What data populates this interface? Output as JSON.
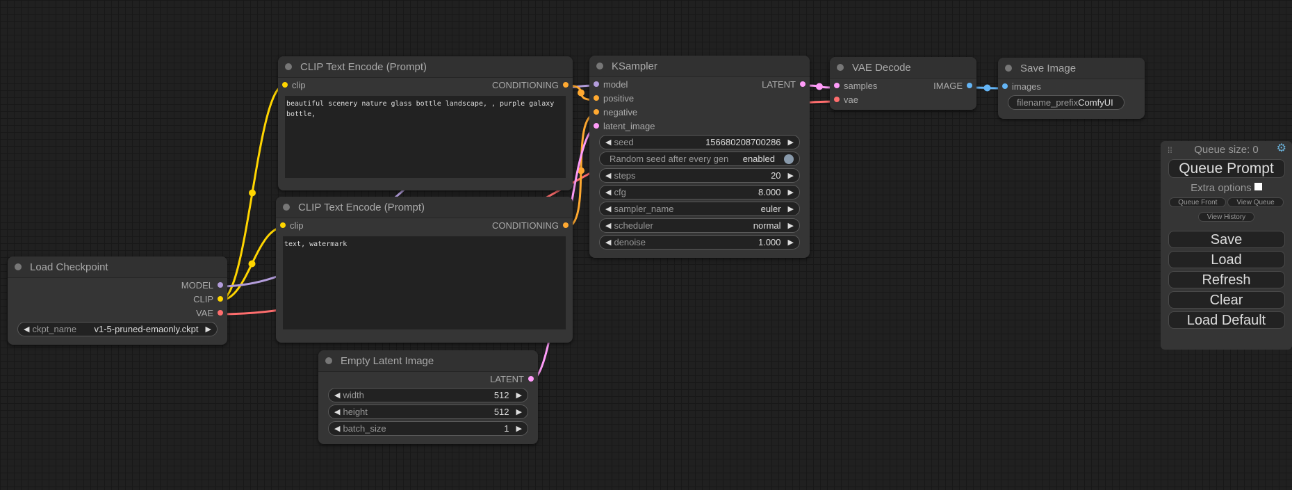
{
  "colors": {
    "model": "#b39ddb",
    "clip": "#ffd500",
    "vae": "#ff6e6e",
    "conditioning": "#ffa931",
    "latent": "#ff9cf9",
    "image": "#64b5f6"
  },
  "nodes": [
    {
      "id": "clip-text-encode-positive",
      "title": "CLIP Text Encode (Prompt)",
      "inputs": [
        {
          "label": "clip",
          "type": "clip"
        }
      ],
      "outputs": [
        {
          "label": "CONDITIONING",
          "type": "conditioning"
        }
      ],
      "text": "beautiful scenery nature glass bottle landscape, , purple galaxy\nbottle,",
      "widgets": []
    },
    {
      "id": "clip-text-encode-negative",
      "title": "CLIP Text Encode (Prompt)",
      "inputs": [
        {
          "label": "clip",
          "type": "clip"
        }
      ],
      "outputs": [
        {
          "label": "CONDITIONING",
          "type": "conditioning"
        }
      ],
      "text": "text, watermark",
      "widgets": []
    },
    {
      "id": "load-checkpoint",
      "title": "Load Checkpoint",
      "inputs": [],
      "outputs": [
        {
          "label": "MODEL",
          "type": "model"
        },
        {
          "label": "CLIP",
          "type": "clip"
        },
        {
          "label": "VAE",
          "type": "vae"
        }
      ],
      "widgets": [
        {
          "name": "ckpt_name",
          "value": "v1-5-pruned-emaonly.ckpt"
        }
      ]
    },
    {
      "id": "empty-latent-image",
      "title": "Empty Latent Image",
      "inputs": [],
      "outputs": [
        {
          "label": "LATENT",
          "type": "latent"
        }
      ],
      "widgets": [
        {
          "name": "width",
          "value": "512"
        },
        {
          "name": "height",
          "value": "512"
        },
        {
          "name": "batch_size",
          "value": "1"
        }
      ]
    },
    {
      "id": "ksampler",
      "title": "KSampler",
      "inputs": [
        {
          "label": "model",
          "type": "model"
        },
        {
          "label": "positive",
          "type": "conditioning"
        },
        {
          "label": "negative",
          "type": "conditioning"
        },
        {
          "label": "latent_image",
          "type": "latent"
        }
      ],
      "outputs": [
        {
          "label": "LATENT",
          "type": "latent"
        }
      ],
      "widgets": [
        {
          "name": "seed",
          "value": "156680208700286"
        },
        {
          "name": "Random seed after every gen",
          "value": "enabled",
          "toggle": true
        },
        {
          "name": "steps",
          "value": "20"
        },
        {
          "name": "cfg",
          "value": "8.000"
        },
        {
          "name": "sampler_name",
          "value": "euler"
        },
        {
          "name": "scheduler",
          "value": "normal"
        },
        {
          "name": "denoise",
          "value": "1.000"
        }
      ]
    },
    {
      "id": "vae-decode",
      "title": "VAE Decode",
      "inputs": [
        {
          "label": "samples",
          "type": "latent"
        },
        {
          "label": "vae",
          "type": "vae"
        }
      ],
      "outputs": [
        {
          "label": "IMAGE",
          "type": "image"
        }
      ],
      "widgets": []
    },
    {
      "id": "save-image",
      "title": "Save Image",
      "inputs": [
        {
          "label": "images",
          "type": "image"
        }
      ],
      "outputs": [],
      "widgets": [
        {
          "name": "filename_prefix",
          "value": "ComfyUI",
          "plain": true
        }
      ]
    }
  ],
  "panel": {
    "queue_size": "Queue size: 0",
    "queue_prompt": "Queue Prompt",
    "extra_options": "Extra options",
    "queue_front": "Queue Front",
    "view_queue": "View Queue",
    "view_history": "View History",
    "save": "Save",
    "load": "Load",
    "refresh": "Refresh",
    "clear": "Clear",
    "load_default": "Load Default"
  }
}
